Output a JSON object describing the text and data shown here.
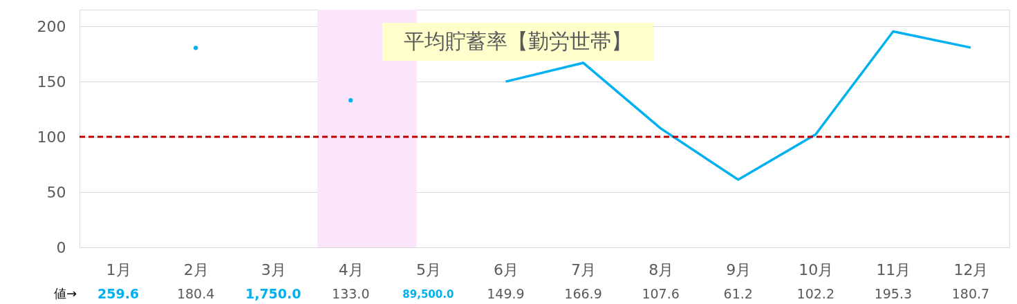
{
  "chart_data": {
    "type": "line",
    "title": "平均貯蓄率【勤労世帯】",
    "categories": [
      "1月",
      "2月",
      "3月",
      "4月",
      "5月",
      "6月",
      "7月",
      "8月",
      "9月",
      "10月",
      "11月",
      "12月"
    ],
    "series": [
      {
        "color": "#00b0f0",
        "values": [
          null,
          180.4,
          null,
          133.0,
          null,
          149.9,
          166.9,
          107.6,
          61.2,
          102.2,
          195.3,
          180.7
        ],
        "value_labels": [
          "259.6",
          "180.4",
          "1,750.0",
          "133.0",
          "89,500.0",
          "149.9",
          "166.9",
          "107.6",
          "61.2",
          "102.2",
          "195.3",
          "180.7"
        ]
      }
    ],
    "ylim": [
      0,
      215
    ],
    "yticks": [
      0,
      50,
      100,
      150,
      200
    ],
    "grid": "y",
    "marker": "none",
    "line_style": "solid",
    "ref_lines": [
      {
        "axis": "y",
        "value": 100,
        "color": "#c00000",
        "line_style": "dashed"
      }
    ],
    "bands": [
      {
        "axis": "x",
        "from": "4月",
        "to": "5月",
        "color": "#fbe5fb"
      }
    ],
    "annotations": [
      "値→"
    ]
  }
}
